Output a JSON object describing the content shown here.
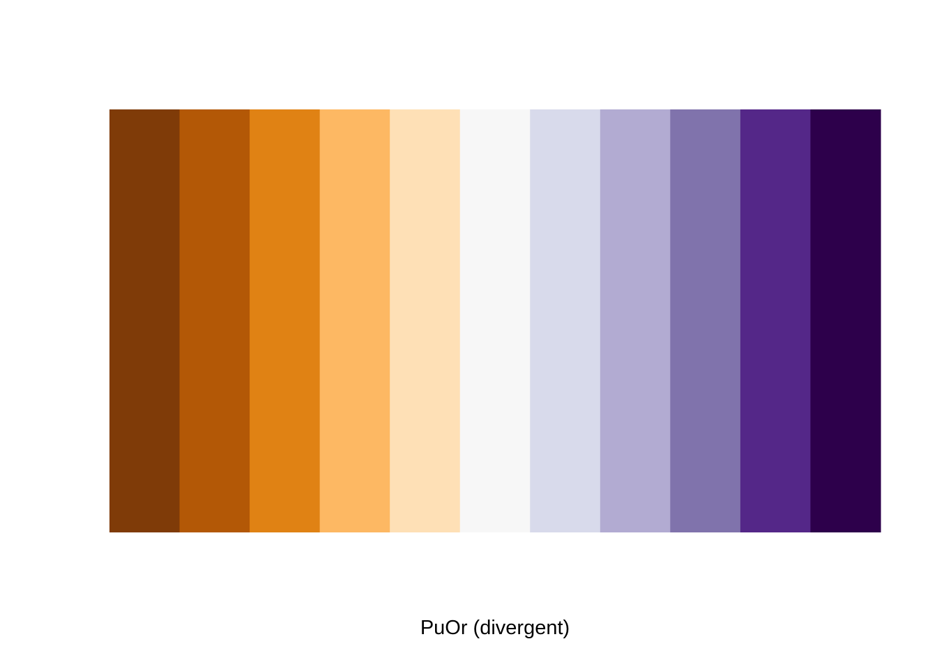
{
  "chart_data": {
    "type": "bar",
    "palette": "PuOr",
    "xlabel": "PuOr (divergent)",
    "colors": [
      "#7F3B08",
      "#B35806",
      "#E08214",
      "#FDB863",
      "#FEE0B6",
      "#F7F7F7",
      "#D8DAEB",
      "#B2ABD2",
      "#8073AC",
      "#542788",
      "#2D004B"
    ],
    "values": [
      1,
      1,
      1,
      1,
      1,
      1,
      1,
      1,
      1,
      1,
      1
    ],
    "grid": false,
    "legend": "none"
  }
}
